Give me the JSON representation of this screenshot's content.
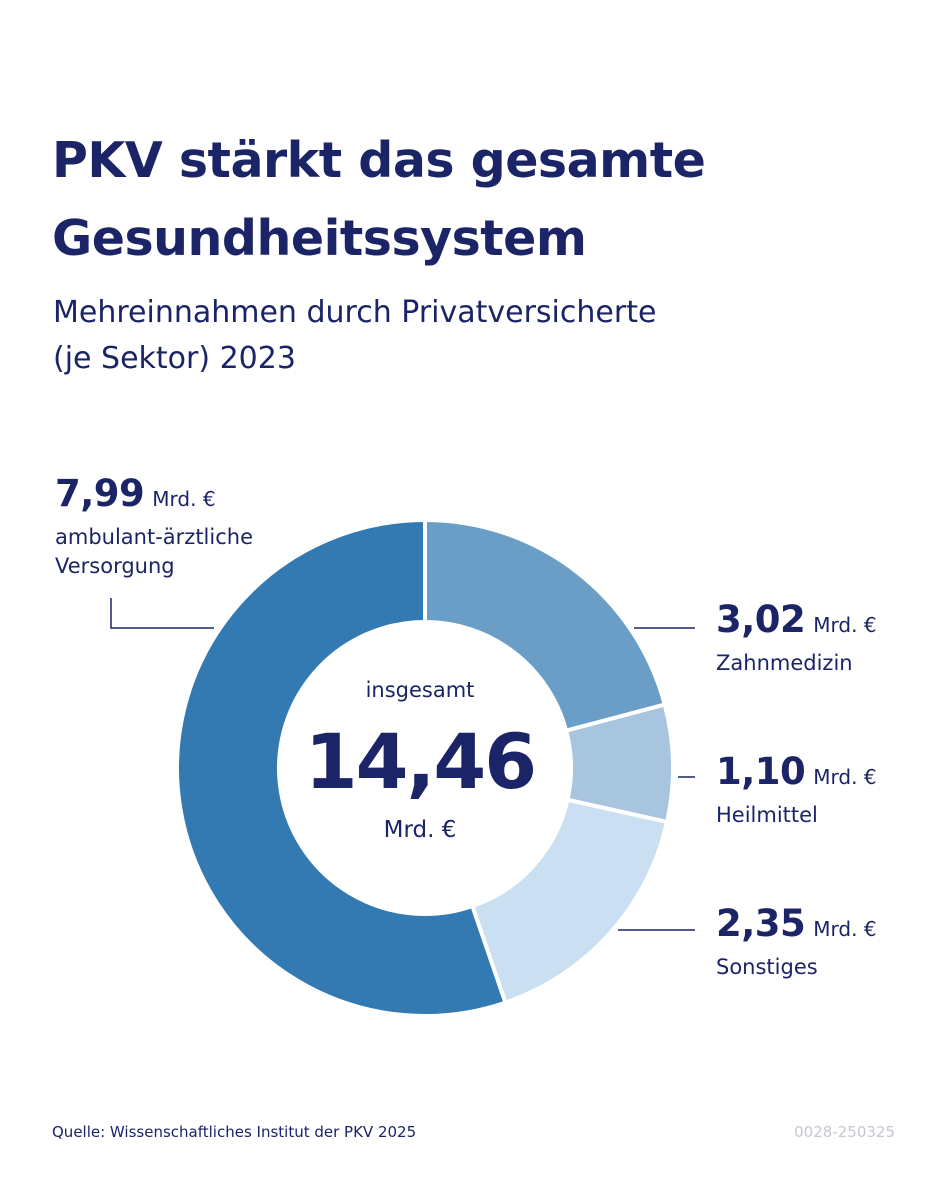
{
  "title_lines": [
    "PKV stärkt das gesamte",
    "Gesundheitssystem"
  ],
  "subtitle_lines": [
    "Mehreinnahmen durch Privatversicherte",
    "(je Sektor) 2023"
  ],
  "chart_data": {
    "type": "pie",
    "donut": true,
    "unit": "Mrd. €",
    "total": {
      "label": "insgesamt",
      "value_text": "14,46",
      "unit": "Mrd. €",
      "value": 14.46
    },
    "slices": [
      {
        "label": "Zahnmedizin",
        "value": 3.02,
        "value_text": "3,02",
        "color": "#6a9ec6"
      },
      {
        "label": "Heilmittel",
        "value": 1.1,
        "value_text": "1,10",
        "color": "#a7c5df"
      },
      {
        "label": "Sonstiges",
        "value": 2.35,
        "value_text": "2,35",
        "color": "#cadff1"
      },
      {
        "label": "ambulant-ärztliche Versorgung",
        "value": 7.99,
        "value_text": "7,99",
        "color": "#337ab2",
        "label_lines": [
          "ambulant-ärztliche",
          "Versorgung"
        ]
      }
    ],
    "colors": {
      "text": "#1b2466",
      "leader": "#1b2466",
      "separator": "#ffffff"
    }
  },
  "footer": {
    "source": "Quelle: Wissenschaftliches Institut der PKV 2025",
    "code": "0028-250325"
  }
}
